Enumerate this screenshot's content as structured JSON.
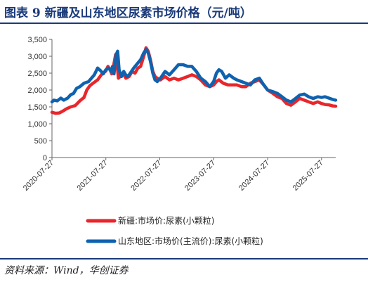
{
  "title": "图表 9 新疆及山东地区尿素市场价格（元/吨）",
  "source": "资料来源：Wind，华创证券",
  "chart_data": {
    "type": "line",
    "title": "",
    "xlabel": "",
    "ylabel": "",
    "ylim": [
      0,
      3500
    ],
    "yticks": [
      0,
      500,
      1000,
      1500,
      2000,
      2500,
      3000,
      3500
    ],
    "xlim": [
      "2020-07-27",
      "2025-10-31"
    ],
    "xticks": [
      "2020-07-27",
      "2021-07-27",
      "2022-07-27",
      "2023-07-27",
      "2024-07-27",
      "2025-07-27"
    ],
    "grid": false,
    "legend_position": "bottom",
    "series": [
      {
        "name": "新疆:市场价:尿素(小颗粒)",
        "color": "#e8262b",
        "points": [
          [
            "2020-07-27",
            1340
          ],
          [
            "2020-08-20",
            1310
          ],
          [
            "2020-09-15",
            1320
          ],
          [
            "2020-10-10",
            1380
          ],
          [
            "2020-11-05",
            1450
          ],
          [
            "2020-12-01",
            1500
          ],
          [
            "2021-01-01",
            1540
          ],
          [
            "2021-02-01",
            1680
          ],
          [
            "2021-03-01",
            1780
          ],
          [
            "2021-03-20",
            2000
          ],
          [
            "2021-04-10",
            2130
          ],
          [
            "2021-05-01",
            2200
          ],
          [
            "2021-06-01",
            2300
          ],
          [
            "2021-07-01",
            2480
          ],
          [
            "2021-07-27",
            2560
          ],
          [
            "2021-08-10",
            2700
          ],
          [
            "2021-08-25",
            2600
          ],
          [
            "2021-09-05",
            2480
          ],
          [
            "2021-09-15",
            2650
          ],
          [
            "2021-10-01",
            3050
          ],
          [
            "2021-10-10",
            2800
          ],
          [
            "2021-10-20",
            2350
          ],
          [
            "2021-11-01",
            2400
          ],
          [
            "2021-11-20",
            2500
          ],
          [
            "2021-12-10",
            2350
          ],
          [
            "2022-01-01",
            2400
          ],
          [
            "2022-01-20",
            2550
          ],
          [
            "2022-02-10",
            2500
          ],
          [
            "2022-03-01",
            2650
          ],
          [
            "2022-03-20",
            2700
          ],
          [
            "2022-04-10",
            3000
          ],
          [
            "2022-04-25",
            3250
          ],
          [
            "2022-05-10",
            3150
          ],
          [
            "2022-05-25",
            2900
          ],
          [
            "2022-06-10",
            2550
          ],
          [
            "2022-06-25",
            2400
          ],
          [
            "2022-07-10",
            2350
          ],
          [
            "2022-08-01",
            2300
          ],
          [
            "2022-09-01",
            2400
          ],
          [
            "2022-10-01",
            2300
          ],
          [
            "2022-11-01",
            2350
          ],
          [
            "2022-12-01",
            2300
          ],
          [
            "2023-01-01",
            2350
          ],
          [
            "2023-02-01",
            2400
          ],
          [
            "2023-03-01",
            2450
          ],
          [
            "2023-04-01",
            2400
          ],
          [
            "2023-05-01",
            2300
          ],
          [
            "2023-06-01",
            2150
          ],
          [
            "2023-07-01",
            2100
          ],
          [
            "2023-07-27",
            2150
          ],
          [
            "2023-08-15",
            2250
          ],
          [
            "2023-09-01",
            2300
          ],
          [
            "2023-10-01",
            2200
          ],
          [
            "2023-11-01",
            2150
          ],
          [
            "2023-12-01",
            2150
          ],
          [
            "2024-01-01",
            2150
          ],
          [
            "2024-02-01",
            2100
          ],
          [
            "2024-03-01",
            2100
          ],
          [
            "2024-04-01",
            2200
          ],
          [
            "2024-05-01",
            2250
          ],
          [
            "2024-06-01",
            2300
          ],
          [
            "2024-07-01",
            2150
          ],
          [
            "2024-07-27",
            2000
          ],
          [
            "2024-09-01",
            1900
          ],
          [
            "2024-10-01",
            1800
          ],
          [
            "2024-11-01",
            1750
          ],
          [
            "2024-12-01",
            1600
          ],
          [
            "2025-01-01",
            1550
          ],
          [
            "2025-02-01",
            1650
          ],
          [
            "2025-03-01",
            1750
          ],
          [
            "2025-04-01",
            1700
          ],
          [
            "2025-05-01",
            1650
          ],
          [
            "2025-06-01",
            1600
          ],
          [
            "2025-07-01",
            1650
          ],
          [
            "2025-07-27",
            1600
          ],
          [
            "2025-08-20",
            1570
          ],
          [
            "2025-09-15",
            1560
          ],
          [
            "2025-10-10",
            1530
          ],
          [
            "2025-10-31",
            1520
          ]
        ]
      },
      {
        "name": "山东地区:市场价(主流价):尿素(小颗粒)",
        "color": "#0f62ae",
        "points": [
          [
            "2020-07-27",
            1650
          ],
          [
            "2020-08-10",
            1700
          ],
          [
            "2020-09-01",
            1680
          ],
          [
            "2020-09-25",
            1760
          ],
          [
            "2020-10-15",
            1700
          ],
          [
            "2020-11-10",
            1760
          ],
          [
            "2020-12-01",
            1860
          ],
          [
            "2020-12-20",
            1900
          ],
          [
            "2021-01-10",
            2050
          ],
          [
            "2021-02-01",
            2100
          ],
          [
            "2021-03-01",
            2200
          ],
          [
            "2021-04-01",
            2250
          ],
          [
            "2021-05-10",
            2450
          ],
          [
            "2021-06-01",
            2650
          ],
          [
            "2021-06-20",
            2580
          ],
          [
            "2021-07-10",
            2480
          ],
          [
            "2021-07-27",
            2600
          ],
          [
            "2021-08-15",
            2650
          ],
          [
            "2021-09-01",
            2550
          ],
          [
            "2021-09-10",
            2700
          ],
          [
            "2021-09-20",
            2480
          ],
          [
            "2021-10-05",
            3050
          ],
          [
            "2021-10-15",
            3150
          ],
          [
            "2021-10-25",
            2600
          ],
          [
            "2021-11-10",
            2400
          ],
          [
            "2021-11-25",
            2550
          ],
          [
            "2021-12-15",
            2400
          ],
          [
            "2022-01-01",
            2450
          ],
          [
            "2022-02-01",
            2650
          ],
          [
            "2022-03-01",
            2800
          ],
          [
            "2022-03-20",
            2900
          ],
          [
            "2022-04-10",
            3100
          ],
          [
            "2022-04-25",
            3200
          ],
          [
            "2022-05-10",
            3100
          ],
          [
            "2022-05-25",
            2850
          ],
          [
            "2022-06-10",
            2500
          ],
          [
            "2022-06-25",
            2300
          ],
          [
            "2022-07-10",
            2250
          ],
          [
            "2022-08-01",
            2350
          ],
          [
            "2022-09-01",
            2550
          ],
          [
            "2022-10-01",
            2450
          ],
          [
            "2022-11-01",
            2600
          ],
          [
            "2022-12-01",
            2750
          ],
          [
            "2023-01-01",
            2750
          ],
          [
            "2023-02-01",
            2700
          ],
          [
            "2023-03-01",
            2700
          ],
          [
            "2023-04-01",
            2550
          ],
          [
            "2023-05-01",
            2350
          ],
          [
            "2023-06-01",
            2250
          ],
          [
            "2023-07-01",
            2100
          ],
          [
            "2023-07-27",
            2250
          ],
          [
            "2023-08-15",
            2500
          ],
          [
            "2023-09-01",
            2600
          ],
          [
            "2023-09-20",
            2550
          ],
          [
            "2023-10-15",
            2350
          ],
          [
            "2023-11-10",
            2450
          ],
          [
            "2023-12-10",
            2350
          ],
          [
            "2024-01-01",
            2300
          ],
          [
            "2024-02-01",
            2250
          ],
          [
            "2024-03-01",
            2200
          ],
          [
            "2024-04-01",
            2150
          ],
          [
            "2024-05-01",
            2300
          ],
          [
            "2024-06-01",
            2350
          ],
          [
            "2024-07-01",
            2150
          ],
          [
            "2024-07-27",
            2000
          ],
          [
            "2024-09-01",
            1950
          ],
          [
            "2024-10-01",
            1900
          ],
          [
            "2024-11-01",
            1800
          ],
          [
            "2024-12-01",
            1700
          ],
          [
            "2025-01-01",
            1650
          ],
          [
            "2025-02-01",
            1750
          ],
          [
            "2025-03-01",
            1850
          ],
          [
            "2025-04-01",
            1880
          ],
          [
            "2025-05-01",
            1800
          ],
          [
            "2025-06-01",
            1750
          ],
          [
            "2025-07-01",
            1800
          ],
          [
            "2025-07-27",
            1780
          ],
          [
            "2025-08-20",
            1800
          ],
          [
            "2025-09-15",
            1760
          ],
          [
            "2025-10-10",
            1720
          ],
          [
            "2025-10-31",
            1700
          ]
        ]
      }
    ]
  }
}
